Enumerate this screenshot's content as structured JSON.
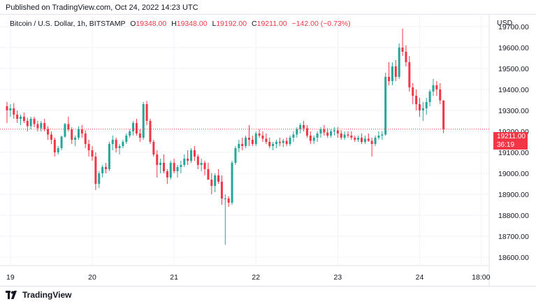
{
  "header": {
    "published": "Published on TradingView.com, Oct 24, 2022 14:23 UTC"
  },
  "legend": {
    "symbol": "Bitcoin / U.S. Dollar, 1h, BITSTAMP",
    "o_label": "O",
    "o": "19348.00",
    "h_label": "H",
    "h": "19348.00",
    "l_label": "L",
    "l": "19192.00",
    "c_label": "C",
    "c": "19211.00",
    "change": "−142.00 (−0.73%)"
  },
  "price_axis": {
    "currency": "USD"
  },
  "last_price": {
    "price": "19211.00",
    "countdown": "36:19"
  },
  "footer": {
    "brand": "TradingView"
  },
  "colors": {
    "up": "#26a69a",
    "down": "#f23645",
    "grid": "#f0f3fa",
    "text": "#131722"
  },
  "chart_data": {
    "type": "candlestick",
    "title": "Bitcoin / U.S. Dollar, 1h, BITSTAMP",
    "ylabel": "USD",
    "ylim": [
      18560,
      19760
    ],
    "y_ticks": [
      19700,
      19600,
      19500,
      19400,
      19300,
      19200,
      19100,
      19000,
      18900,
      18800,
      18700,
      18600
    ],
    "y_tick_labels": [
      "19700.00",
      "19600.00",
      "19500.00",
      "19400.00",
      "19300.00",
      "19200.00",
      "19100.00",
      "19000.00",
      "18900.00",
      "18800.00",
      "18700.00",
      "18600.00"
    ],
    "x_ticks": [
      {
        "i": 1,
        "label": "19"
      },
      {
        "i": 25,
        "label": "20"
      },
      {
        "i": 49,
        "label": "21"
      },
      {
        "i": 73,
        "label": "22"
      },
      {
        "i": 97,
        "label": "23"
      },
      {
        "i": 121,
        "label": "24"
      },
      {
        "i": 139,
        "label": "18:00"
      }
    ],
    "last_price": 19211,
    "candles": [
      [
        19320,
        19340,
        19240,
        19300
      ],
      [
        19300,
        19330,
        19270,
        19310
      ],
      [
        19310,
        19335,
        19260,
        19280
      ],
      [
        19280,
        19300,
        19240,
        19260
      ],
      [
        19260,
        19280,
        19230,
        19270
      ],
      [
        19270,
        19290,
        19240,
        19250
      ],
      [
        19250,
        19265,
        19200,
        19225
      ],
      [
        19225,
        19270,
        19210,
        19260
      ],
      [
        19260,
        19270,
        19220,
        19235
      ],
      [
        19235,
        19250,
        19200,
        19215
      ],
      [
        19215,
        19250,
        19200,
        19240
      ],
      [
        19240,
        19260,
        19200,
        19210
      ],
      [
        19210,
        19225,
        19160,
        19185
      ],
      [
        19185,
        19200,
        19140,
        19160
      ],
      [
        19160,
        19170,
        19080,
        19100
      ],
      [
        19100,
        19130,
        19090,
        19120
      ],
      [
        19120,
        19180,
        19110,
        19175
      ],
      [
        19175,
        19240,
        19170,
        19235
      ],
      [
        19235,
        19270,
        19200,
        19210
      ],
      [
        19210,
        19220,
        19140,
        19160
      ],
      [
        19160,
        19180,
        19130,
        19170
      ],
      [
        19170,
        19225,
        19160,
        19210
      ],
      [
        19210,
        19230,
        19170,
        19190
      ],
      [
        19190,
        19205,
        19120,
        19140
      ],
      [
        19140,
        19160,
        19080,
        19110
      ],
      [
        19110,
        19130,
        19060,
        19080
      ],
      [
        19080,
        19100,
        18920,
        18950
      ],
      [
        18950,
        19010,
        18930,
        19000
      ],
      [
        19000,
        19040,
        18980,
        19030
      ],
      [
        19030,
        19050,
        19000,
        19020
      ],
      [
        19020,
        19150,
        19010,
        19140
      ],
      [
        19140,
        19180,
        19110,
        19160
      ],
      [
        19160,
        19170,
        19100,
        19120
      ],
      [
        19120,
        19140,
        19090,
        19130
      ],
      [
        19130,
        19160,
        19120,
        19150
      ],
      [
        19150,
        19190,
        19140,
        19180
      ],
      [
        19180,
        19210,
        19170,
        19200
      ],
      [
        19200,
        19250,
        19180,
        19240
      ],
      [
        19240,
        19260,
        19180,
        19190
      ],
      [
        19190,
        19210,
        19150,
        19170
      ],
      [
        19170,
        19340,
        19160,
        19330
      ],
      [
        19330,
        19345,
        19230,
        19250
      ],
      [
        19250,
        19260,
        19140,
        19150
      ],
      [
        19150,
        19160,
        19080,
        19090
      ],
      [
        19090,
        19110,
        18980,
        19040
      ],
      [
        19040,
        19070,
        19000,
        19050
      ],
      [
        19050,
        19090,
        19000,
        19010
      ],
      [
        19010,
        19020,
        18950,
        18980
      ],
      [
        18980,
        19060,
        18970,
        19050
      ],
      [
        19050,
        19070,
        19000,
        19010
      ],
      [
        19010,
        19040,
        18980,
        19030
      ],
      [
        19030,
        19060,
        19000,
        19040
      ],
      [
        19040,
        19090,
        19030,
        19070
      ],
      [
        19070,
        19110,
        19040,
        19060
      ],
      [
        19060,
        19120,
        19050,
        19110
      ],
      [
        19110,
        19130,
        19060,
        19080
      ],
      [
        19080,
        19090,
        19020,
        19040
      ],
      [
        19040,
        19070,
        19010,
        19050
      ],
      [
        19050,
        19060,
        18990,
        19020
      ],
      [
        19020,
        19050,
        18980,
        18970
      ],
      [
        18970,
        19000,
        18900,
        18940
      ],
      [
        18940,
        19000,
        18910,
        18990
      ],
      [
        18990,
        19020,
        18950,
        18960
      ],
      [
        18960,
        18990,
        18850,
        18880
      ],
      [
        18880,
        18900,
        18660,
        18880
      ],
      [
        18880,
        18890,
        18840,
        18860
      ],
      [
        18860,
        19060,
        18850,
        19050
      ],
      [
        19050,
        19130,
        19040,
        19120
      ],
      [
        19120,
        19160,
        19100,
        19140
      ],
      [
        19140,
        19170,
        19110,
        19130
      ],
      [
        19130,
        19180,
        19120,
        19170
      ],
      [
        19170,
        19230,
        19130,
        19160
      ],
      [
        19160,
        19180,
        19130,
        19140
      ],
      [
        19140,
        19200,
        19130,
        19190
      ],
      [
        19190,
        19210,
        19170,
        19180
      ],
      [
        19180,
        19200,
        19150,
        19165
      ],
      [
        19165,
        19190,
        19140,
        19150
      ],
      [
        19150,
        19170,
        19120,
        19130
      ],
      [
        19130,
        19150,
        19110,
        19140
      ],
      [
        19140,
        19160,
        19120,
        19150
      ],
      [
        19150,
        19170,
        19130,
        19145
      ],
      [
        19145,
        19165,
        19125,
        19155
      ],
      [
        19155,
        19170,
        19130,
        19140
      ],
      [
        19140,
        19180,
        19130,
        19170
      ],
      [
        19170,
        19200,
        19150,
        19185
      ],
      [
        19185,
        19220,
        19170,
        19210
      ],
      [
        19210,
        19240,
        19190,
        19230
      ],
      [
        19230,
        19250,
        19200,
        19215
      ],
      [
        19215,
        19230,
        19170,
        19180
      ],
      [
        19180,
        19200,
        19140,
        19155
      ],
      [
        19155,
        19180,
        19140,
        19170
      ],
      [
        19170,
        19200,
        19150,
        19190
      ],
      [
        19190,
        19220,
        19170,
        19210
      ],
      [
        19210,
        19230,
        19180,
        19195
      ],
      [
        19195,
        19215,
        19170,
        19180
      ],
      [
        19180,
        19210,
        19170,
        19200
      ],
      [
        19200,
        19220,
        19180,
        19205
      ],
      [
        19205,
        19220,
        19170,
        19190
      ],
      [
        19190,
        19205,
        19160,
        19170
      ],
      [
        19170,
        19200,
        19160,
        19185
      ],
      [
        19185,
        19200,
        19170,
        19180
      ],
      [
        19180,
        19200,
        19160,
        19170
      ],
      [
        19170,
        19180,
        19150,
        19160
      ],
      [
        19160,
        19180,
        19150,
        19170
      ],
      [
        19170,
        19190,
        19140,
        19150
      ],
      [
        19150,
        19180,
        19140,
        19165
      ],
      [
        19165,
        19190,
        19150,
        19155
      ],
      [
        19155,
        19170,
        19080,
        19140
      ],
      [
        19140,
        19180,
        19130,
        19170
      ],
      [
        19170,
        19200,
        19160,
        19180
      ],
      [
        19180,
        19200,
        19160,
        19185
      ],
      [
        19185,
        19480,
        19180,
        19460
      ],
      [
        19460,
        19530,
        19420,
        19440
      ],
      [
        19440,
        19530,
        19420,
        19510
      ],
      [
        19510,
        19540,
        19440,
        19460
      ],
      [
        19460,
        19620,
        19450,
        19600
      ],
      [
        19600,
        19690,
        19560,
        19580
      ],
      [
        19580,
        19610,
        19510,
        19530
      ],
      [
        19530,
        19560,
        19390,
        19410
      ],
      [
        19410,
        19430,
        19330,
        19370
      ],
      [
        19370,
        19400,
        19300,
        19330
      ],
      [
        19330,
        19360,
        19270,
        19300
      ],
      [
        19300,
        19340,
        19250,
        19310
      ],
      [
        19310,
        19360,
        19280,
        19340
      ],
      [
        19340,
        19400,
        19320,
        19390
      ],
      [
        19390,
        19450,
        19370,
        19420
      ],
      [
        19420,
        19440,
        19370,
        19400
      ],
      [
        19400,
        19430,
        19330,
        19348
      ],
      [
        19348,
        19348,
        19192,
        19211
      ]
    ]
  }
}
